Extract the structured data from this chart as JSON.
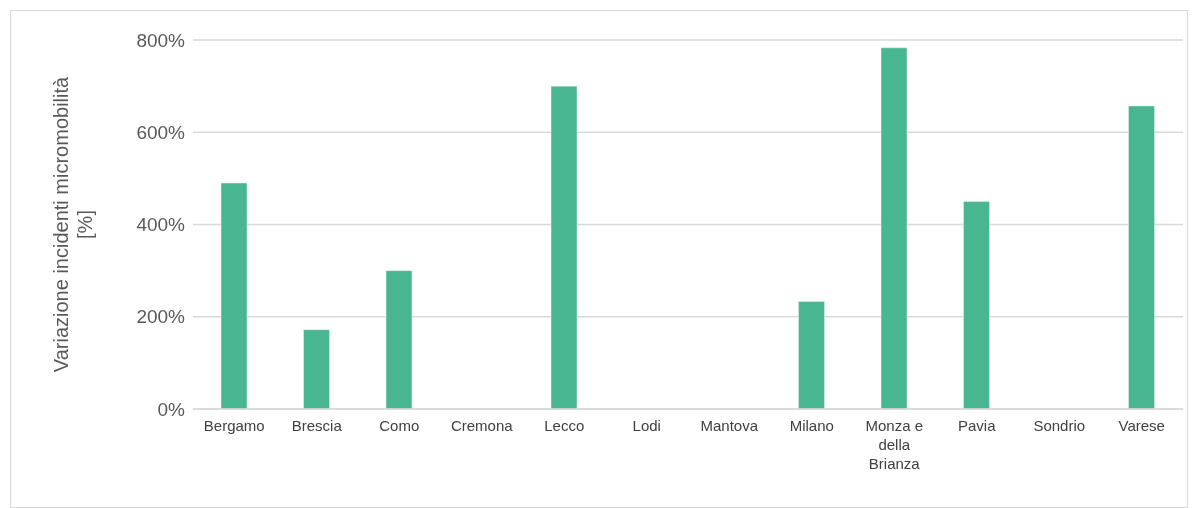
{
  "chart_data": {
    "type": "bar",
    "ylabel": "Variazione incidenti micromobilità [%]",
    "categories": [
      "Bergamo",
      "Brescia",
      "Como",
      "Cremona",
      "Lecco",
      "Lodi",
      "Mantova",
      "Milano",
      "Monza e della Brianza",
      "Pavia",
      "Sondrio",
      "Varese"
    ],
    "values": [
      490,
      172,
      300,
      0,
      700,
      0,
      0,
      233,
      783,
      450,
      0,
      657
    ],
    "color": "#47b691",
    "ylim": [
      0,
      800
    ],
    "yticks": [
      {
        "value": 0,
        "label": "0%"
      },
      {
        "value": 200,
        "label": "200%"
      },
      {
        "value": 400,
        "label": "400%"
      },
      {
        "value": 600,
        "label": "600%"
      },
      {
        "value": 800,
        "label": "800%"
      }
    ],
    "grid": "y",
    "legend": false
  }
}
